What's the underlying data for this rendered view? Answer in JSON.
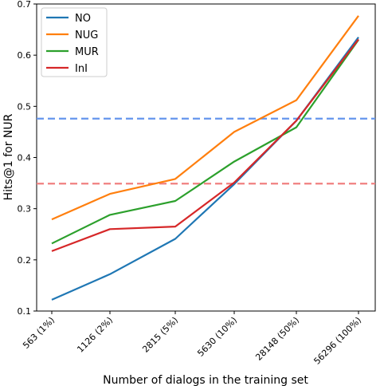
{
  "chart_data": {
    "type": "line",
    "categories": [
      "563 (1%)",
      "1126 (2%)",
      "2815 (5%)",
      "5630 (10%)",
      "28148 (50%)",
      "56296 (100%)"
    ],
    "series": [
      {
        "name": "NO",
        "color": "#1f77b4",
        "values": [
          0.122,
          0.172,
          0.241,
          0.348,
          0.472,
          0.635
        ]
      },
      {
        "name": "NUG",
        "color": "#ff7f0e",
        "values": [
          0.279,
          0.329,
          0.358,
          0.45,
          0.512,
          0.677
        ]
      },
      {
        "name": "MUR",
        "color": "#2ca02c",
        "values": [
          0.232,
          0.288,
          0.315,
          0.392,
          0.459,
          0.63
        ]
      },
      {
        "name": "InI",
        "color": "#d62728",
        "values": [
          0.217,
          0.26,
          0.265,
          0.351,
          0.472,
          0.631
        ]
      }
    ],
    "reference_lines": [
      {
        "value": 0.476,
        "color": "#6495ed",
        "style": "dashed"
      },
      {
        "value": 0.349,
        "color": "#f08080",
        "style": "dashed"
      }
    ],
    "xlabel": "Number of dialogs in the training set",
    "ylabel": "Hits@1 for NUR",
    "ylim": [
      0.1,
      0.7
    ],
    "yticks": [
      "0.1",
      "0.2",
      "0.3",
      "0.4",
      "0.5",
      "0.6",
      "0.7"
    ],
    "legend_position": "top-left",
    "grid": false
  }
}
